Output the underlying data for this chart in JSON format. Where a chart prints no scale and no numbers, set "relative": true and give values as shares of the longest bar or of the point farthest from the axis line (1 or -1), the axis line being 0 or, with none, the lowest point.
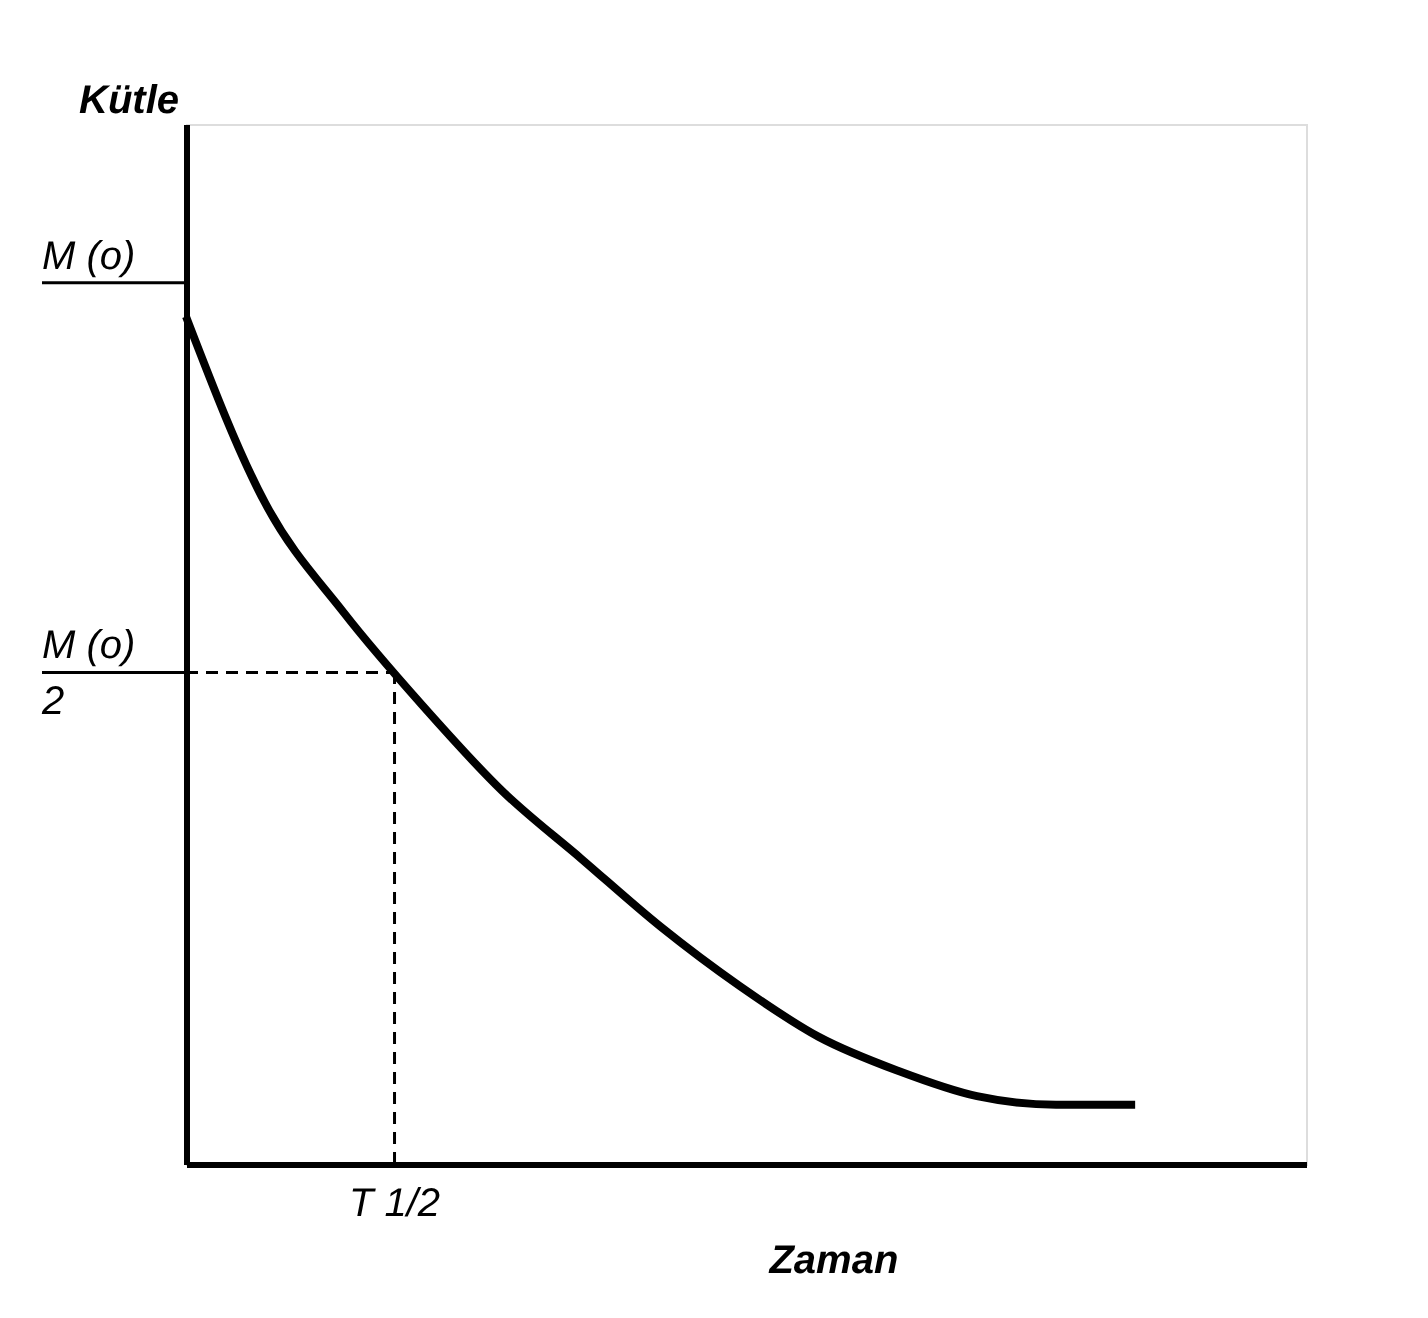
{
  "chart_data": {
    "type": "line",
    "relative": true,
    "xlabel": "Zaman",
    "ylabel": "Kütle",
    "categories": [
      null,
      null,
      null,
      null,
      null,
      null,
      null,
      null,
      null,
      null,
      null,
      null,
      null
    ],
    "series": [
      {
        "color": "#000000",
        "values": [
          1.0,
          0.78,
          0.65,
          0.54,
          0.44,
          0.36,
          0.28,
          0.21,
          0.15,
          0.11,
          0.08,
          0.07,
          0.07
        ]
      }
    ],
    "ref_lines": [
      {
        "axis": "y",
        "value": 1.04,
        "line_style": "solid",
        "color": "#000000",
        "label": "M (o)"
      },
      {
        "axis": "y",
        "value": 0.58,
        "line_style": "dashed",
        "color": "#000000",
        "label": "M (o)\n2"
      }
    ],
    "annotations": [
      "T 1/2"
    ],
    "marker": "none",
    "line_style": "solid"
  }
}
